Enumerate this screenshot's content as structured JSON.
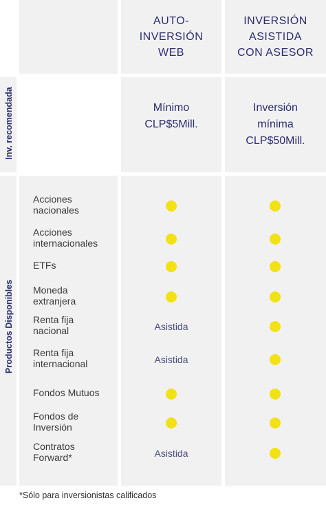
{
  "columns": {
    "web": {
      "title": "AUTO-\nINVERSIÓN\nWEB",
      "minimum": "Mínimo\nCLP$5Mill."
    },
    "asesor": {
      "title": "INVERSIÓN\nASISTIDA\nCON ASESOR",
      "minimum": "Inversión\nmínima\nCLP$50Mill."
    }
  },
  "sections": {
    "recommended": "Inv. recomendada",
    "products": "Productos Disponibles"
  },
  "products": [
    {
      "name": "Acciones\nnacionales",
      "web": "dot",
      "asesor": "dot"
    },
    {
      "name": "Acciones\ninternacionales",
      "web": "dot",
      "asesor": "dot"
    },
    {
      "name": "ETFs",
      "web": "dot",
      "asesor": "dot"
    },
    {
      "name": "Moneda\nextranjera",
      "web": "dot",
      "asesor": "dot"
    },
    {
      "name": "Renta fija\nnacional",
      "web": "Asistida",
      "asesor": "dot"
    },
    {
      "name": "Renta fija\ninternacional",
      "web": "Asistida",
      "asesor": "dot"
    },
    {
      "name": "Fondos Mutuos",
      "web": "dot",
      "asesor": "dot"
    },
    {
      "name": "Fondos de\nInversión",
      "web": "dot",
      "asesor": "dot"
    },
    {
      "name": "Contratos\nForward*",
      "web": "Asistida",
      "asesor": "dot"
    }
  ],
  "footnote": "*Sólo para inversionistas calificados",
  "colors": {
    "dot": "#f2e114",
    "heading": "#2a2d6e",
    "panel": "#f1f1f2"
  }
}
